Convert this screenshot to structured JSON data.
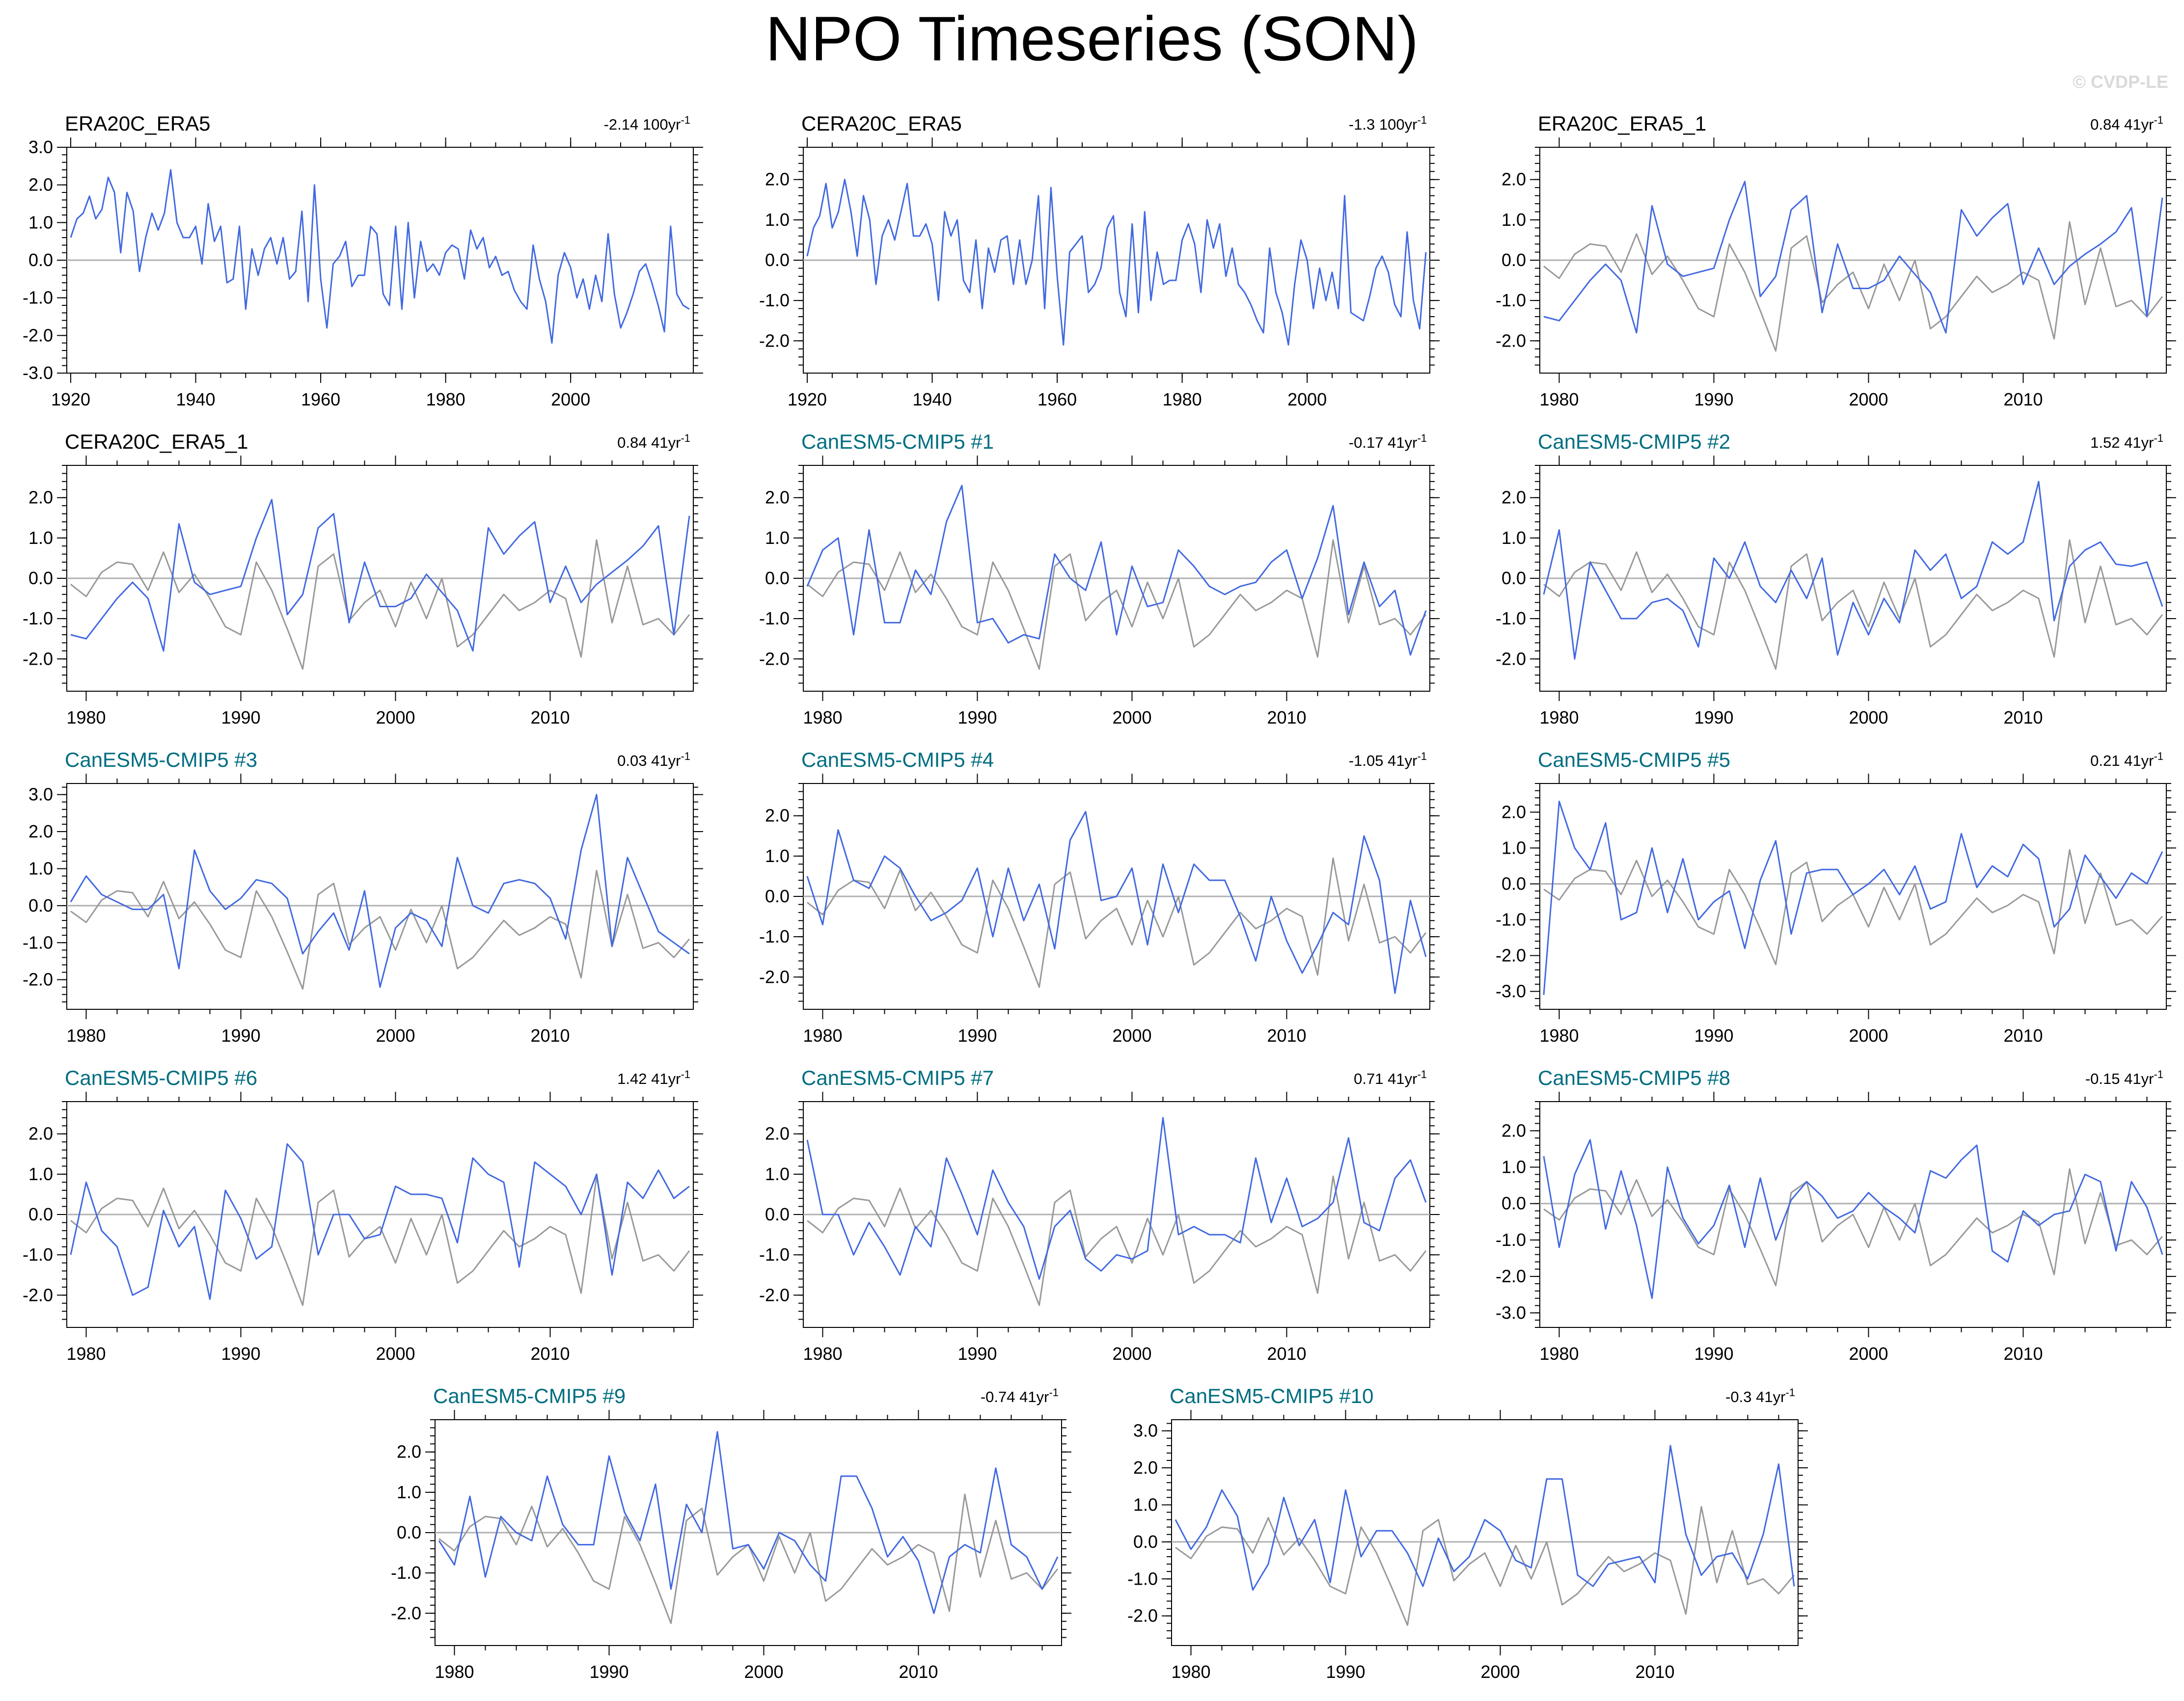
{
  "title": "NPO Timeseries (SON)",
  "watermark": "© CVDP-LE",
  "colors": {
    "primary": "#4169e1",
    "obs": "#999999",
    "model_title": "#006d80",
    "zero": "#b0b0b0"
  },
  "chart_data": {
    "type": "line",
    "shared_obs_series": "ERA5 SON NPO 1979-2019 (grey reference)",
    "obs_1979": [
      -0.15,
      -0.45,
      0.15,
      0.4,
      0.35,
      -0.3,
      0.65,
      -0.35,
      0.1,
      -0.5,
      -1.2,
      -1.4,
      0.4,
      -0.3,
      -1.25,
      -2.25,
      0.3,
      0.6,
      -1.05,
      -0.6,
      -0.3,
      -1.2,
      -0.1,
      -1.0,
      0.0,
      -1.7,
      -1.4,
      -0.9,
      -0.4,
      -0.8,
      -0.6,
      -0.3,
      -0.5,
      -1.95,
      0.95,
      -1.1,
      0.3,
      -1.15,
      -1.0,
      -1.4,
      -0.9
    ],
    "panels": [
      {
        "name": "ERA20C_ERA5",
        "trend": "-2.14 100yr",
        "kind": "obs",
        "x_start": 1920,
        "x_end": 2019,
        "xticks": [
          1920,
          1940,
          1960,
          1980,
          2000
        ],
        "ylim": [
          -3,
          3
        ],
        "yticks": [
          -3,
          -2,
          -1,
          0,
          1,
          2,
          3
        ],
        "overlay": false,
        "values": [
          0.6,
          1.1,
          1.25,
          1.7,
          1.1,
          1.35,
          2.2,
          1.8,
          0.2,
          1.8,
          1.3,
          -0.3,
          0.6,
          1.25,
          0.8,
          1.25,
          2.4,
          1.0,
          0.6,
          0.6,
          0.9,
          -0.1,
          1.5,
          0.5,
          0.9,
          -0.6,
          -0.5,
          0.9,
          -1.3,
          0.3,
          -0.4,
          0.3,
          0.6,
          -0.1,
          0.6,
          -0.5,
          -0.3,
          1.3,
          -1.1,
          2.0,
          -0.5,
          -1.8,
          -0.1,
          0.1,
          0.5,
          -0.7,
          -0.4,
          -0.4,
          0.9,
          0.7,
          -0.9,
          -1.2,
          0.9,
          -1.3,
          1.0,
          -1.0,
          0.5,
          -0.3,
          -0.1,
          -0.4,
          0.2,
          0.4,
          0.3,
          -0.5,
          0.8,
          0.3,
          0.6,
          -0.2,
          0.1,
          -0.4,
          -0.3,
          -0.8,
          -1.1,
          -1.3,
          0.4,
          -0.5,
          -1.1,
          -2.2,
          -0.4,
          0.2,
          -0.2,
          -1.0,
          -0.5,
          -1.3,
          -0.4,
          -1.1,
          0.7,
          -0.9,
          -1.8,
          -1.4,
          -0.9,
          -0.3,
          -0.1,
          -0.6,
          -1.2,
          -1.9,
          0.9,
          -0.9,
          -1.2,
          -1.3
        ]
      },
      {
        "name": "CERA20C_ERA5",
        "trend": "-1.3 100yr",
        "kind": "obs",
        "x_start": 1920,
        "x_end": 2019,
        "xticks": [
          1920,
          1940,
          1960,
          1980,
          2000
        ],
        "ylim": [
          -2.8,
          2.8
        ],
        "yticks": [
          -2,
          -1,
          0,
          1,
          2
        ],
        "overlay": false,
        "values": [
          0.1,
          0.8,
          1.1,
          1.9,
          0.8,
          1.2,
          2.0,
          1.2,
          0.1,
          1.6,
          1.0,
          -0.6,
          0.6,
          1.0,
          0.5,
          1.2,
          1.9,
          0.6,
          0.6,
          0.9,
          0.4,
          -1.0,
          1.2,
          0.6,
          1.0,
          -0.5,
          -0.8,
          0.5,
          -1.2,
          0.3,
          -0.3,
          0.5,
          0.6,
          -0.6,
          0.5,
          -0.6,
          0.0,
          1.6,
          -1.2,
          1.8,
          -0.4,
          -2.1,
          0.2,
          0.4,
          0.6,
          -0.8,
          -0.6,
          -0.2,
          0.8,
          1.1,
          -0.8,
          -1.4,
          0.9,
          -1.3,
          1.2,
          -1.0,
          0.2,
          -0.6,
          -0.5,
          -0.5,
          0.5,
          0.9,
          0.4,
          -0.8,
          1.0,
          0.3,
          0.9,
          -0.4,
          0.3,
          -0.6,
          -0.8,
          -1.1,
          -1.5,
          -1.8,
          0.3,
          -0.8,
          -1.3,
          -2.1,
          -0.6,
          0.5,
          0.0,
          -1.2,
          -0.2,
          -1.0,
          -0.3,
          -1.2,
          1.6,
          -1.3,
          -1.4,
          -1.5,
          -0.9,
          -0.2,
          0.1,
          -0.3,
          -1.1,
          -1.4,
          0.7,
          -1.0,
          -1.7,
          0.2
        ]
      },
      {
        "name": "ERA20C_ERA5_1",
        "trend": "0.84 41yr",
        "kind": "obs",
        "x_start": 1979,
        "x_end": 2019,
        "xticks": [
          1980,
          1990,
          2000,
          2010
        ],
        "ylim": [
          -2.8,
          2.8
        ],
        "yticks": [
          -2,
          -1,
          0,
          1,
          2
        ],
        "overlay": true,
        "values": [
          -1.4,
          -1.5,
          -1.0,
          -0.5,
          -0.1,
          -0.5,
          -1.8,
          1.35,
          -0.1,
          -0.4,
          -0.3,
          -0.2,
          1.0,
          1.95,
          -0.9,
          -0.4,
          1.25,
          1.6,
          -1.3,
          0.4,
          -0.7,
          -0.7,
          -0.5,
          0.1,
          -0.35,
          -0.8,
          -1.8,
          1.25,
          0.6,
          1.05,
          1.4,
          -0.6,
          0.3,
          -0.6,
          -0.15,
          0.15,
          0.4,
          0.7,
          1.3,
          -1.4,
          1.55
        ]
      },
      {
        "name": "CERA20C_ERA5_1",
        "trend": "0.84 41yr",
        "kind": "obs",
        "x_start": 1979,
        "x_end": 2019,
        "xticks": [
          1980,
          1990,
          2000,
          2010
        ],
        "ylim": [
          -2.8,
          2.8
        ],
        "yticks": [
          -2,
          -1,
          0,
          1,
          2
        ],
        "overlay": true,
        "values": [
          -1.4,
          -1.5,
          -1.0,
          -0.5,
          -0.1,
          -0.5,
          -1.8,
          1.35,
          -0.1,
          -0.4,
          -0.3,
          -0.2,
          1.0,
          1.95,
          -0.9,
          -0.4,
          1.25,
          1.6,
          -1.1,
          0.4,
          -0.7,
          -0.7,
          -0.5,
          0.1,
          -0.35,
          -0.8,
          -1.8,
          1.25,
          0.6,
          1.05,
          1.4,
          -0.6,
          0.3,
          -0.6,
          -0.15,
          0.15,
          0.45,
          0.8,
          1.3,
          -1.4,
          1.55
        ]
      },
      {
        "name": "CanESM5-CMIP5 #1",
        "trend": "-0.17 41yr",
        "kind": "model",
        "x_start": 1979,
        "x_end": 2019,
        "xticks": [
          1980,
          1990,
          2000,
          2010
        ],
        "ylim": [
          -2.8,
          2.8
        ],
        "yticks": [
          -2,
          -1,
          0,
          1,
          2
        ],
        "overlay": true,
        "values": [
          -0.2,
          0.7,
          1.0,
          -1.4,
          1.2,
          -1.1,
          -1.1,
          0.2,
          -0.4,
          1.4,
          2.3,
          -1.1,
          -1.0,
          -1.6,
          -1.4,
          -1.5,
          0.6,
          0.0,
          -0.3,
          0.9,
          -1.4,
          0.3,
          -0.7,
          -0.6,
          0.7,
          0.3,
          -0.2,
          -0.4,
          -0.2,
          -0.1,
          0.4,
          0.7,
          -0.5,
          0.5,
          1.8,
          -0.9,
          0.4,
          -0.7,
          -0.3,
          -1.9,
          -0.8
        ]
      },
      {
        "name": "CanESM5-CMIP5 #2",
        "trend": "1.52 41yr",
        "kind": "model",
        "x_start": 1979,
        "x_end": 2019,
        "xticks": [
          1980,
          1990,
          2000,
          2010
        ],
        "ylim": [
          -2.8,
          2.8
        ],
        "yticks": [
          -2,
          -1,
          0,
          1,
          2
        ],
        "overlay": true,
        "values": [
          -0.4,
          1.2,
          -2.0,
          0.4,
          -0.3,
          -1.0,
          -1.0,
          -0.6,
          -0.5,
          -0.8,
          -1.7,
          0.5,
          0.0,
          0.9,
          -0.2,
          -0.6,
          0.2,
          -0.5,
          0.5,
          -1.9,
          -0.6,
          -1.4,
          -0.5,
          -1.1,
          0.7,
          0.2,
          0.6,
          -0.5,
          -0.2,
          0.9,
          0.6,
          0.9,
          2.4,
          -1.05,
          0.3,
          0.7,
          0.9,
          0.35,
          0.3,
          0.4,
          -0.7
        ]
      },
      {
        "name": "CanESM5-CMIP5 #3",
        "trend": "0.03 41yr",
        "kind": "model",
        "x_start": 1979,
        "x_end": 2019,
        "xticks": [
          1980,
          1990,
          2000,
          2010
        ],
        "ylim": [
          -2.8,
          3.3
        ],
        "yticks": [
          -2,
          -1,
          0,
          1,
          2,
          3
        ],
        "overlay": true,
        "values": [
          0.1,
          0.8,
          0.3,
          0.1,
          -0.1,
          -0.1,
          0.3,
          -1.7,
          1.5,
          0.4,
          -0.1,
          0.2,
          0.7,
          0.6,
          0.2,
          -1.3,
          -0.7,
          -0.2,
          -1.2,
          0.4,
          -2.2,
          -0.6,
          -0.2,
          -0.4,
          -1.1,
          1.3,
          0.0,
          -0.2,
          0.6,
          0.7,
          0.6,
          0.2,
          -0.9,
          1.5,
          3.0,
          -1.1,
          1.3,
          0.3,
          -0.7,
          -1.0,
          -1.3
        ]
      },
      {
        "name": "CanESM5-CMIP5 #4",
        "trend": "-1.05 41yr",
        "kind": "model",
        "x_start": 1979,
        "x_end": 2019,
        "xticks": [
          1980,
          1990,
          2000,
          2010
        ],
        "ylim": [
          -2.8,
          2.8
        ],
        "yticks": [
          -2,
          -1,
          0,
          1,
          2
        ],
        "overlay": true,
        "values": [
          0.5,
          -0.7,
          1.65,
          0.4,
          0.2,
          1.0,
          0.7,
          0.0,
          -0.6,
          -0.4,
          -0.1,
          0.7,
          -1.0,
          0.7,
          -0.6,
          0.3,
          -1.3,
          1.4,
          2.1,
          -0.1,
          0.0,
          0.7,
          -1.2,
          0.8,
          -0.4,
          0.8,
          0.4,
          0.4,
          -0.5,
          -1.6,
          0.0,
          -1.1,
          -1.9,
          -1.2,
          -0.4,
          -0.7,
          1.5,
          0.4,
          -2.4,
          -0.1,
          -1.5
        ]
      },
      {
        "name": "CanESM5-CMIP5 #5",
        "trend": "0.21 41yr",
        "kind": "model",
        "x_start": 1979,
        "x_end": 2019,
        "xticks": [
          1980,
          1990,
          2000,
          2010
        ],
        "ylim": [
          -3.5,
          2.8
        ],
        "yticks": [
          -3,
          -2,
          -1,
          0,
          1,
          2
        ],
        "overlay": true,
        "values": [
          -3.1,
          2.3,
          1.0,
          0.4,
          1.7,
          -1.0,
          -0.8,
          1.0,
          -0.8,
          0.7,
          -1.0,
          -0.5,
          -0.2,
          -1.8,
          0.1,
          1.2,
          -1.4,
          0.3,
          0.4,
          0.4,
          -0.3,
          0.0,
          0.4,
          -0.3,
          0.5,
          -0.7,
          -0.5,
          1.4,
          -0.1,
          0.5,
          0.2,
          1.1,
          0.7,
          -1.2,
          -0.7,
          0.8,
          0.2,
          -0.4,
          0.3,
          0.0,
          0.9
        ]
      },
      {
        "name": "CanESM5-CMIP5 #6",
        "trend": "1.42 41yr",
        "kind": "model",
        "x_start": 1979,
        "x_end": 2019,
        "xticks": [
          1980,
          1990,
          2000,
          2010
        ],
        "ylim": [
          -2.8,
          2.8
        ],
        "yticks": [
          -2,
          -1,
          0,
          1,
          2
        ],
        "overlay": true,
        "values": [
          -1.0,
          0.8,
          -0.4,
          -0.8,
          -2.0,
          -1.8,
          0.1,
          -0.8,
          -0.3,
          -2.1,
          0.6,
          -0.1,
          -1.1,
          -0.8,
          1.75,
          1.3,
          -1.0,
          0.0,
          0.0,
          -0.6,
          -0.5,
          0.7,
          0.5,
          0.5,
          0.4,
          -0.7,
          1.4,
          1.0,
          0.8,
          -1.3,
          1.3,
          1.0,
          0.7,
          0.0,
          1.0,
          -1.5,
          0.8,
          0.4,
          1.1,
          0.4,
          0.7
        ]
      },
      {
        "name": "CanESM5-CMIP5 #7",
        "trend": "0.71 41yr",
        "kind": "model",
        "x_start": 1979,
        "x_end": 2019,
        "xticks": [
          1980,
          1990,
          2000,
          2010
        ],
        "ylim": [
          -2.8,
          2.8
        ],
        "yticks": [
          -2,
          -1,
          0,
          1,
          2
        ],
        "overlay": true,
        "values": [
          1.85,
          0.0,
          0.0,
          -1.0,
          -0.2,
          -0.8,
          -1.5,
          -0.3,
          -0.8,
          1.4,
          0.5,
          -0.5,
          1.1,
          0.3,
          -0.3,
          -1.6,
          -0.3,
          0.1,
          -1.1,
          -1.4,
          -1.0,
          -1.1,
          -0.9,
          2.4,
          -0.5,
          -0.3,
          -0.5,
          -0.5,
          -0.7,
          1.4,
          -0.2,
          0.9,
          -0.3,
          -0.1,
          0.3,
          1.9,
          -0.2,
          -0.4,
          0.9,
          1.35,
          0.3
        ]
      },
      {
        "name": "CanESM5-CMIP5 #8",
        "trend": "-0.15 41yr",
        "kind": "model",
        "x_start": 1979,
        "x_end": 2019,
        "xticks": [
          1980,
          1990,
          2000,
          2010
        ],
        "ylim": [
          -3.4,
          2.8
        ],
        "yticks": [
          -3,
          -2,
          -1,
          0,
          1,
          2
        ],
        "overlay": true,
        "values": [
          1.3,
          -1.2,
          0.8,
          1.75,
          -0.7,
          0.9,
          -0.6,
          -2.6,
          1.0,
          -0.4,
          -1.1,
          -0.6,
          0.5,
          -1.2,
          0.7,
          -1.0,
          0.1,
          0.6,
          0.2,
          -0.4,
          -0.2,
          0.3,
          -0.1,
          -0.4,
          -0.8,
          0.9,
          0.7,
          1.2,
          1.6,
          -1.3,
          -1.6,
          -0.2,
          -0.6,
          -0.3,
          -0.2,
          0.8,
          0.6,
          -1.3,
          0.6,
          -0.1,
          -1.4
        ]
      },
      {
        "name": "CanESM5-CMIP5 #9",
        "trend": "-0.74 41yr",
        "kind": "model",
        "x_start": 1979,
        "x_end": 2019,
        "xticks": [
          1980,
          1990,
          2000,
          2010
        ],
        "ylim": [
          -2.8,
          2.8
        ],
        "yticks": [
          -2,
          -1,
          0,
          1,
          2
        ],
        "overlay": true,
        "values": [
          -0.2,
          -0.8,
          0.9,
          -1.1,
          0.4,
          0.0,
          -0.2,
          1.4,
          0.2,
          -0.3,
          -0.3,
          1.9,
          0.5,
          -0.2,
          1.2,
          -1.4,
          0.7,
          0.0,
          2.5,
          -0.4,
          -0.3,
          -0.9,
          0.0,
          -0.2,
          -0.8,
          -1.2,
          1.4,
          1.4,
          0.6,
          -0.6,
          -0.1,
          -0.7,
          -2.0,
          -0.6,
          -0.3,
          -0.5,
          1.6,
          -0.3,
          -0.6,
          -1.4,
          -0.6
        ]
      },
      {
        "name": "CanESM5-CMIP5 #10",
        "trend": "-0.3 41yr",
        "kind": "model",
        "x_start": 1979,
        "x_end": 2019,
        "xticks": [
          1980,
          1990,
          2000,
          2010
        ],
        "ylim": [
          -2.8,
          3.3
        ],
        "yticks": [
          -2,
          -1,
          0,
          1,
          2,
          3
        ],
        "overlay": true,
        "values": [
          0.6,
          -0.2,
          0.4,
          1.4,
          0.7,
          -1.3,
          -0.6,
          1.2,
          -0.1,
          0.6,
          -1.1,
          1.4,
          -0.4,
          0.3,
          0.3,
          -0.3,
          -1.2,
          0.1,
          -0.8,
          -0.4,
          0.6,
          0.3,
          -0.5,
          -0.7,
          1.7,
          1.7,
          -0.9,
          -1.2,
          -0.6,
          -0.5,
          -0.4,
          -1.1,
          2.6,
          0.2,
          -0.9,
          -0.4,
          -0.3,
          -1.0,
          0.2,
          2.1,
          -1.2
        ]
      }
    ]
  }
}
